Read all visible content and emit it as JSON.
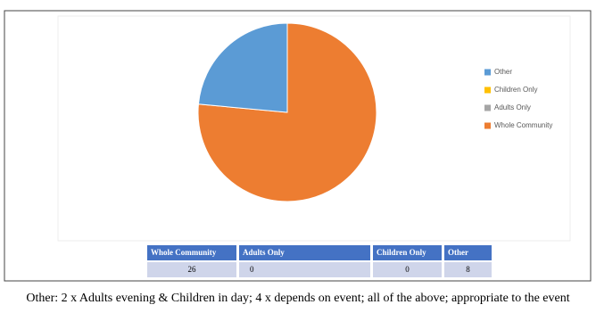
{
  "chart_data": {
    "type": "pie",
    "categories": [
      "Whole Community",
      "Adults Only",
      "Children Only",
      "Other"
    ],
    "values": [
      26,
      0,
      0,
      8
    ],
    "colors": [
      "#ed7d31",
      "#a5a5a5",
      "#ffc000",
      "#5b9bd5"
    ],
    "legend": "right"
  },
  "caption": "Other: 2 x Adults evening & Children in day; 4 x depends on event; all of the above; appropriate to the event"
}
